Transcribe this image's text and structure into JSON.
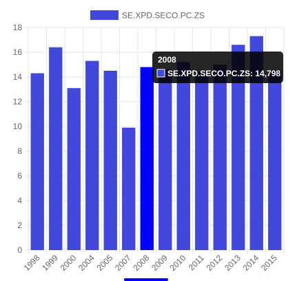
{
  "chart_data": {
    "type": "bar",
    "categories": [
      "1998",
      "1999",
      "2000",
      "2004",
      "2005",
      "2007",
      "2008",
      "2009",
      "2010",
      "2011",
      "2012",
      "2013",
      "2014",
      "2015"
    ],
    "series": [
      {
        "name": "SE.XPD.SECO.PC.ZS",
        "values": [
          14.3,
          16.4,
          13.1,
          15.3,
          14.5,
          9.9,
          14.798,
          14.6,
          15.2,
          14.4,
          15.0,
          16.6,
          17.3,
          14.5
        ]
      }
    ],
    "xlabel": "",
    "ylabel": "",
    "ylim": [
      0,
      18
    ],
    "yticks": [
      0,
      2,
      4,
      6,
      8,
      10,
      12,
      14,
      16,
      18
    ],
    "grid": true,
    "legend": "top-center",
    "colors": {
      "bar": "#4348dc",
      "bar_highlight": "#0000ff",
      "grid": "#e6e6e6",
      "tooltip_bg": "#000000"
    },
    "tooltip": {
      "title": "2008",
      "body": "SE.XPD.SECO.PC.ZS: 14,798",
      "category_index": 6
    }
  }
}
